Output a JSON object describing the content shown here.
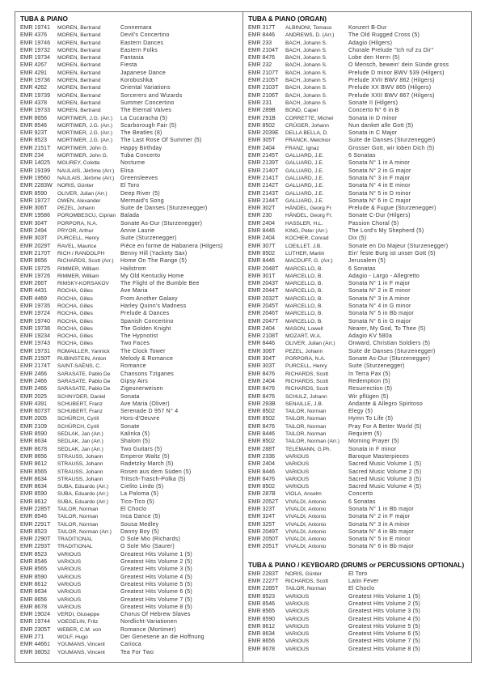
{
  "left": {
    "title": "TUBA & PIANO",
    "rows": [
      [
        "EMR 19741",
        "MOREN, Bertrand",
        "Connemara"
      ],
      [
        "EMR 4376",
        "MOREN, Bertrand",
        "Devil's Concertino"
      ],
      [
        "EMR 19746",
        "MOREN, Bertrand",
        "Eastern Dances"
      ],
      [
        "EMR 19732",
        "MOREN, Bertrand",
        "Eastern Folks"
      ],
      [
        "EMR 19734",
        "MOREN, Bertrand",
        "Fantasia"
      ],
      [
        "EMR 4267",
        "MOREN, Bertrand",
        "Fiesta"
      ],
      [
        "EMR 4291",
        "MOREN, Bertrand",
        "Japanese Dance"
      ],
      [
        "EMR 19736",
        "MOREN, Bertrand",
        "Korobushka"
      ],
      [
        "EMR 4262",
        "MOREN, Bertrand",
        "Oriental Variations"
      ],
      [
        "EMR 19739",
        "MOREN, Bertrand",
        "Sorcerers and Wizards"
      ],
      [
        "EMR 4378",
        "MOREN, Bertrand",
        "Summer Concertino"
      ],
      [
        "EMR 19733",
        "MOREN, Bertrand",
        "The Eternal Valves"
      ],
      [
        "EMR 8656",
        "MORTIMER, J.G. (Arr.)",
        "La Cucaracha (5)"
      ],
      [
        "EMR 8546",
        "MORTIMER, J.G. (Arr.)",
        "Scarborough Fair (5)"
      ],
      [
        "EMR 923T",
        "MORTIMER, J.G. (Arr.)",
        "The Beatles (8)"
      ],
      [
        "EMR 8523",
        "MORTIMER, J.G. (Arr.)",
        "The Last Rose Of Summer (5)"
      ],
      [
        "EMR 2151T",
        "MORTIMER, John G.",
        "Happy Birthday"
      ],
      [
        "EMR 234",
        "MORTIMER, John G.",
        "Tuba Concerto"
      ],
      [
        "EMR 14025",
        "MOUREY, Colette",
        "Nocturne"
      ],
      [
        "EMR 19199",
        "NAULAIS, Jérôme (Arr.)",
        "Elisa"
      ],
      [
        "EMR 19560",
        "NAULAIS, Jérôme (Arr.)",
        "Greensleeves"
      ],
      [
        "EMR 2283W",
        "NORIS, Günter",
        "El Toro"
      ],
      [
        "EMR 8590",
        "OLIVER, Julian (Arr.)",
        "Deep River (5)"
      ],
      [
        "EMR 19727",
        "OWEN, Alexander",
        "Mermaid's Song"
      ],
      [
        "EMR 306T",
        "PEZEL, Johann",
        "Suite de Danses (Sturzenegger)"
      ],
      [
        "EMR 19586",
        "POROMBESCU, Ciprian",
        "Balada"
      ],
      [
        "EMR 304T",
        "PORPORA, N.A.",
        "Sonate As-Dur (Sturzenegger)"
      ],
      [
        "EMR 2494",
        "PRYOR, Arthur",
        "Annie Laurie"
      ],
      [
        "EMR 303T",
        "PURCELL, Henry",
        "Suite (Sturzenegger)"
      ],
      [
        "EMR 2029T",
        "RAVEL, Maurice",
        "Pièce en forme de Habanera (Hilgers)"
      ],
      [
        "EMR 2170T",
        "RICH / RANDOLPH",
        "Benny Hill (Yackety Sax)"
      ],
      [
        "EMR 8656",
        "RICHARDS, Scott (Arr.)",
        "Home On The Range (5)"
      ],
      [
        "EMR 19725",
        "RIMMER, William",
        "Hailstrom"
      ],
      [
        "EMR 19726",
        "RIMMER, William",
        "My Old Kentucky Home"
      ],
      [
        "EMR 266T",
        "RIMSKY-KORSAKOV",
        "The Flight of the Bumble Bee"
      ],
      [
        "EMR 4431",
        "ROCHA, Gilles",
        "Ave Maria"
      ],
      [
        "EMR 4469",
        "ROCHA, Gilles",
        "From Another Galaxy"
      ],
      [
        "EMR 19735",
        "ROCHA, Gilles",
        "Harley Quinn's Madness"
      ],
      [
        "EMR 19724",
        "ROCHA, Gilles",
        "Prelude & Dances"
      ],
      [
        "EMR 19740",
        "ROCHA, Gilles",
        "Spanish Concertino"
      ],
      [
        "EMR 19738",
        "ROCHA, Gilles",
        "The Golden Knight"
      ],
      [
        "EMR 19234",
        "ROCHA, Gilles",
        "The Hypnotist"
      ],
      [
        "EMR 19743",
        "ROCHA, Gilles",
        "Two Faces"
      ],
      [
        "EMR 19731",
        "ROMAILLER, Yannick",
        "The Clock Tower"
      ],
      [
        "EMR 2150T",
        "RUBINSTEIN, Anton",
        "Melody & Romance"
      ],
      [
        "EMR 2174T",
        "SAINT-SAËNS, C.",
        "Romance"
      ],
      [
        "EMR 2466",
        "SARASATE, Pablo De",
        "Chansons Tziganes"
      ],
      [
        "EMR 2466",
        "SARASATE, Pablo De",
        "Gipsy Airs"
      ],
      [
        "EMR 2466",
        "SARASATE, Pablo De",
        "Zigeunerweisen"
      ],
      [
        "EMR 2025",
        "SCHNYDER, Daniel",
        "Sonata"
      ],
      [
        "EMR 4391",
        "SCHUBERT, Franz",
        "Ave Maria (Oliver)"
      ],
      [
        "EMR 6073T",
        "SCHUBERT, Franz",
        "Serenade D 957 N° 4"
      ],
      [
        "EMR 2005",
        "SCHÜRCH, Cyrill",
        "Hors-d'Oeuvre"
      ],
      [
        "EMR 2109",
        "SCHÜRCH, Cyrill",
        "Sonate"
      ],
      [
        "EMR 8590",
        "SEDLAK, Jan (Arr.)",
        "Kalinka (5)"
      ],
      [
        "EMR 8634",
        "SEDLAK, Jan (Arr.)",
        "Shalom (5)"
      ],
      [
        "EMR 8678",
        "SEDLAK, Jan (Arr.)",
        "Two Guitars (5)"
      ],
      [
        "EMR 8656",
        "STRAUSS, Johann",
        "Emperor Waltz (5)"
      ],
      [
        "EMR 8612",
        "STRAUSS, Johann",
        "Radetzky March (5)"
      ],
      [
        "EMR 8565",
        "STRAUSS, Johann",
        "Rosen aus dem Süden (5)"
      ],
      [
        "EMR 8634",
        "STRAUSS, Johann",
        "Tritsch-Trasch-Polka (5)"
      ],
      [
        "EMR 8634",
        "SUBA, Eduardo (Arr.)",
        "Cielito Lindo (5)"
      ],
      [
        "EMR 8590",
        "SUBA, Eduardo (Arr.)",
        "La Paloma (5)"
      ],
      [
        "EMR 8612",
        "SUBA, Eduardo (Arr.)",
        "Tico-Tico (5)"
      ],
      [
        "EMR 2285T",
        "TAILOR, Norman",
        "El Choclo"
      ],
      [
        "EMR 8546",
        "TAILOR, Norman",
        "Inca Dance (5)"
      ],
      [
        "EMR 2291T",
        "TAILOR, Norman",
        "Sousa Medley"
      ],
      [
        "EMR 8523",
        "TAILOR, Norman (Arr.)",
        "Danny Boy (5)"
      ],
      [
        "EMR 2290T",
        "TRADITIONAL",
        "O Sole Mio (Richards)"
      ],
      [
        "EMR 2293T",
        "TRADITIONAL",
        "O Sole Mio (Saurer)"
      ],
      [
        "EMR 8523",
        "VARIOUS",
        "Greatest Hits Volume 1 (5)"
      ],
      [
        "EMR 8546",
        "VARIOUS",
        "Greatest Hits Volume 2 (5)"
      ],
      [
        "EMR 8565",
        "VARIOUS",
        "Greatest Hits Volume 3 (5)"
      ],
      [
        "EMR 8590",
        "VARIOUS",
        "Greatest Hits Volume 4 (5)"
      ],
      [
        "EMR 8612",
        "VARIOUS",
        "Greatest Hits Volume 5 (5)"
      ],
      [
        "EMR 8634",
        "VARIOUS",
        "Greatest Hits Volume 6 (5)"
      ],
      [
        "EMR 8656",
        "VARIOUS",
        "Greatest Hits Volume 7 (5)"
      ],
      [
        "EMR 8678",
        "VARIOUS",
        "Greatest Hits Volume 8 (5)"
      ],
      [
        "EMR 19024",
        "VERDI, Giuseppe",
        "Chorus Of Hebrew Slaves"
      ],
      [
        "EMR 19744",
        "VOEGELIN, Fritz",
        "Nordlicht-Variationen"
      ],
      [
        "EMR 2305T",
        "WEBER, C.M. von",
        "Romance (Mortimer)"
      ],
      [
        "EMR 271",
        "WOLF, Hugo",
        "Der Genesene an die Hoffnung"
      ],
      [
        "EMR 44661",
        "YOUMANS, Vincent",
        "Carioca"
      ],
      [
        "EMR 38052",
        "YOUMANS, Vincent",
        "Tea For Two"
      ]
    ]
  },
  "right": {
    "title": "TUBA & PIANO (ORGAN)",
    "rows": [
      [
        "EMR 317T",
        "ALBINONI, Tomaso",
        "Konzert B-Dur"
      ],
      [
        "EMR 8446",
        "ANDREWS, D. (Arr.)",
        "The Old Rugged Cross (5)"
      ],
      [
        "EMR 233",
        "BACH, Johann S.",
        "Adagio (Hilgers)"
      ],
      [
        "EMR 2104T",
        "BACH, Johann S.",
        "Chorale Prelude \"Ich ruf zu Dir\""
      ],
      [
        "EMR 8476",
        "BACH, Johann S.",
        "Lobe den Herrn (5)"
      ],
      [
        "EMR 232",
        "BACH, Johann S.",
        "O Mensch, bewein' dein Sünde gross"
      ],
      [
        "EMR 2107T",
        "BACH, Johann S.",
        "Prelude D minor BWV 539 (Hilgers)"
      ],
      [
        "EMR 2105T",
        "BACH, Johann S.",
        "Prelude XVII BWV 862 (Hilgers)"
      ],
      [
        "EMR 2103T",
        "BACH, Johann S.",
        "Prelude XX BWV 865 (Hilgers)"
      ],
      [
        "EMR 2106T",
        "BACH, Johann S.",
        "Prelude XXII BWV 867 (Hilgers)"
      ],
      [
        "EMR 231",
        "BACH, Johann S.",
        "Sonate II (Hilgers)"
      ],
      [
        "EMR 289B",
        "BOND, Capel",
        "Concerto N° 6 in B"
      ],
      [
        "EMR 291B",
        "CORRETTE, Michel",
        "Sonata in D minor"
      ],
      [
        "EMR 8502",
        "CRÜGER, Johann",
        "Nun danket alle Gott (5)"
      ],
      [
        "EMR 2039E",
        "DELLA BELLA, D.",
        "Sonata in C Major"
      ],
      [
        "EMR 305T",
        "FRANCK, Melchior",
        "Suite de Danses (Sturzenegger)"
      ],
      [
        "EMR 2404",
        "FRANZ, Ignaz",
        "Grosser Gott, wir loben Dich (5)"
      ],
      [
        "EMR 2145T",
        "GALLIARD, J.E.",
        "6 Sonatas"
      ],
      [
        "EMR 2139T",
        "GALLIARD, J.E.",
        "Sonata N° 1 in A minor"
      ],
      [
        "EMR 2140T",
        "GALLIARD, J.E.",
        "Sonata N° 2 in G major"
      ],
      [
        "EMR 2141T",
        "GALLIARD, J.E.",
        "Sonata N° 3 in F major"
      ],
      [
        "EMR 2142T",
        "GALLIARD, J.E.",
        "Sonata N° 4 in E minor"
      ],
      [
        "EMR 2143T",
        "GALLIARD, J.E.",
        "Sonata N° 5 in D minor"
      ],
      [
        "EMR 2144T",
        "GALLIARD, J.E.",
        "Sonata N° 6 in C major"
      ],
      [
        "EMR 302T",
        "HÄNDEL, Georg Fr.",
        "Prelude & Fugue (Sturzenegger)"
      ],
      [
        "EMR 230",
        "HÄNDEL, Georg Fr.",
        "Sonate C-Dur (Hilgers)"
      ],
      [
        "EMR 2404",
        "HASSLER, H.L.",
        "Passion Choral (5)"
      ],
      [
        "EMR 8446",
        "KING, Peter (Arr.)",
        "The Lord's My Shepherd (5)"
      ],
      [
        "EMR 2404",
        "KOCHER, Conrad",
        "Dix (5)"
      ],
      [
        "EMR 307T",
        "LOEILLET, J.B.",
        "Sonate en Do Majeur (Sturzenegger)"
      ],
      [
        "EMR 8502",
        "LUTHER, Martin",
        "Ein' feste Burg ist unser Gott (5)"
      ],
      [
        "EMR 8446",
        "MACDUFF, G. (Arr.)",
        "Jerusalem (5)"
      ],
      [
        "EMR 2048T",
        "MARCELLO, B.",
        "6 Sonatas"
      ],
      [
        "EMR 301T",
        "MARCELLO, B.",
        "Adagio - Largo - Allegretto"
      ],
      [
        "EMR 2043T",
        "MARCELLO, B.",
        "Sonata N° 1 in F major"
      ],
      [
        "EMR 2044T",
        "MARCELLO, B.",
        "Sonata N° 2 in E minor"
      ],
      [
        "EMR 2032T",
        "MARCELLO, B.",
        "Sonata N° 3 in A minor"
      ],
      [
        "EMR 2045T",
        "MARCELLO, B.",
        "Sonata N° 4 in G minor"
      ],
      [
        "EMR 2046T",
        "MARCELLO, B.",
        "Sonata N° 5 in Bb major"
      ],
      [
        "EMR 2047T",
        "MARCELLO, B.",
        "Sonata N° 6 in G major"
      ],
      [
        "EMR 2404",
        "MASON, Lowell",
        "Nearer, My God, To Thee (5)"
      ],
      [
        "EMR 2108T",
        "MOZART, W.A.",
        "Adagio KV 580a"
      ],
      [
        "EMR 8446",
        "OLIVER, Julian (Arr.)",
        "Onward, Christian Soldiers (5)"
      ],
      [
        "EMR 306T",
        "PEZEL, Johann",
        "Suite de Danses (Sturzenegger)"
      ],
      [
        "EMR 304T",
        "PORPORA, N.A.",
        "Sonate As-Dur (Sturzenegger)"
      ],
      [
        "EMR 303T",
        "PURCELL, Henry",
        "Suite (Sturzenegger)"
      ],
      [
        "EMR 8476",
        "RICHARDS, Scott",
        "In Terra Pax (5)"
      ],
      [
        "EMR 2404",
        "RICHARDS, Scott",
        "Redemption (5)"
      ],
      [
        "EMR 8476",
        "RICHARDS, Scott",
        "Resurrection (5)"
      ],
      [
        "EMR 8476",
        "SCHULZ, Johann",
        "Wir pflügen (5)"
      ],
      [
        "EMR 293B",
        "SENAILLE, J.B.",
        "Andante & Allegro Spiritoso"
      ],
      [
        "EMR 8502",
        "TAILOR, Norman",
        "Elegy (5)"
      ],
      [
        "EMR 8502",
        "TAILOR, Norman",
        "Hymn To Life (5)"
      ],
      [
        "EMR 8476",
        "TAILOR, Norman",
        "Pray For A Better World (5)"
      ],
      [
        "EMR 8446",
        "TAILOR, Norman",
        "Requiem (5)"
      ],
      [
        "EMR 8502",
        "TAILOR, Norman (Arr.)",
        "Morning Prayer (5)"
      ],
      [
        "EMR 288T",
        "TELEMANN, G.Ph.",
        "Sonata in F minor"
      ],
      [
        "EMR 2336",
        "VARIOUS",
        "Baroque Masterpieces"
      ],
      [
        "EMR 2404",
        "VARIOUS",
        "Sacred Music Volume 1 (5)"
      ],
      [
        "EMR 8446",
        "VARIOUS",
        "Sacred Music Volume 2 (5)"
      ],
      [
        "EMR 8476",
        "VARIOUS",
        "Sacred Music Volume 3 (5)"
      ],
      [
        "EMR 8502",
        "VARIOUS",
        "Sacred Music Volume 4 (5)"
      ],
      [
        "EMR 287B",
        "VIOLA, Anselm",
        "Concerto"
      ],
      [
        "EMR 2052T",
        "VIVALDI, Antonio",
        "6 Sonatas"
      ],
      [
        "EMR 323T",
        "VIVALDI, Antonio",
        "Sonata N° 1 in Bb major"
      ],
      [
        "EMR 324T",
        "VIVALDI, Antonio",
        "Sonata N° 2 in F major"
      ],
      [
        "EMR 325T",
        "VIVALDI, Antonio",
        "Sonata N° 3 in A minor"
      ],
      [
        "EMR 2049T",
        "VIVALDI, Antonio",
        "Sonata N° 4 in Bb major"
      ],
      [
        "EMR 2050T",
        "VIVALDI, Antonio",
        "Sonata N° 5 in E minor"
      ],
      [
        "EMR 2051T",
        "VIVALDI, Antonio",
        "Sonata N° 6 in Bb major"
      ]
    ]
  },
  "keyboard": {
    "title": "TUBA & PIANO / KEYBOARD (DRUMS or PERCUSSIONS OPTIONAL)",
    "rows": [
      [
        "EMR 2283T",
        "NORIS, Günter",
        "El Toro"
      ],
      [
        "EMR 2227T",
        "RICHARDS, Scott",
        "Latin Fever"
      ],
      [
        "EMR 2285T",
        "TAILOR, Norman",
        "El Choclo"
      ],
      [
        "EMR 8523",
        "VARIOUS",
        "Greatest Hits Volume 1 (5)"
      ],
      [
        "EMR 8546",
        "VARIOUS",
        "Greatest Hits Volume 2 (5)"
      ],
      [
        "EMR 8565",
        "VARIOUS",
        "Greatest Hits Volume 3 (5)"
      ],
      [
        "EMR 8590",
        "VARIOUS",
        "Greatest Hits Volume 4 (5)"
      ],
      [
        "EMR 8612",
        "VARIOUS",
        "Greatest Hits Volume 5 (5)"
      ],
      [
        "EMR 8634",
        "VARIOUS",
        "Greatest Hits Volume 6 (5)"
      ],
      [
        "EMR 8656",
        "VARIOUS",
        "Greatest Hits Volume 7 (5)"
      ],
      [
        "EMR 8678",
        "VARIOUS",
        "Greatest Hits Volume 8 (5)"
      ]
    ]
  }
}
